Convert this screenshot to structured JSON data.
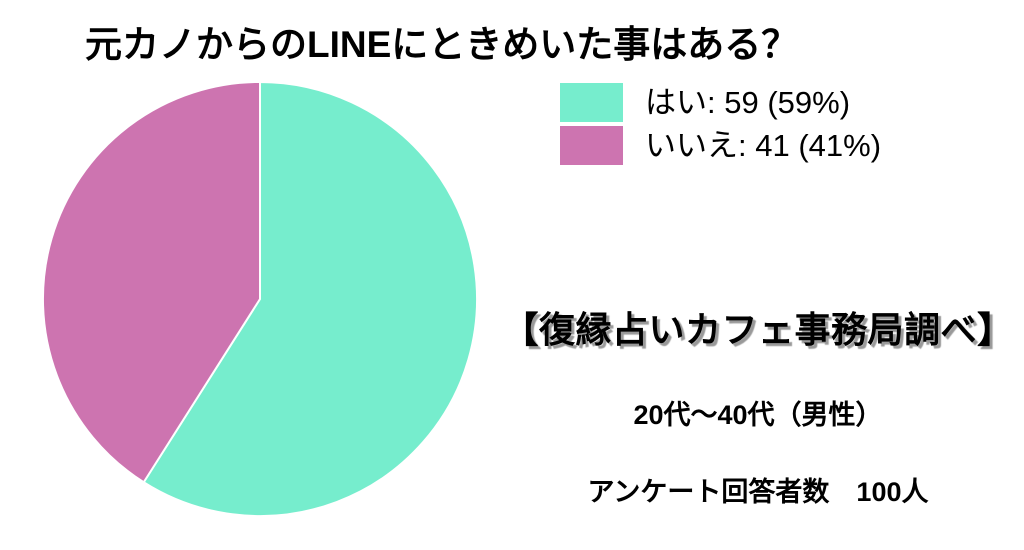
{
  "title": "元カノからのLINEにときめいた事はある？",
  "chart_data": {
    "type": "pie",
    "title": "元カノからのLINEにときめいた事はある？",
    "labels": [
      "はい",
      "いいえ"
    ],
    "values": [
      59,
      41
    ],
    "percents": [
      "59%",
      "41%"
    ],
    "colors": [
      "#76EDCD",
      "#CD74B0"
    ],
    "total": 100,
    "start_angle_deg": -90,
    "direction": "clockwise",
    "legend_position": "right",
    "slice_border_color": "#ffffff"
  },
  "legend": {
    "items": [
      {
        "label": "はい: 59 (59%)",
        "color": "#76EDCD"
      },
      {
        "label": "いいえ: 41 (41%)",
        "color": "#CD74B0"
      }
    ]
  },
  "footer": {
    "source": "【復縁占いカフェ事務局調べ】",
    "demographic": "20代〜40代（男性）",
    "respondents": "アンケート回答者数　100人"
  }
}
